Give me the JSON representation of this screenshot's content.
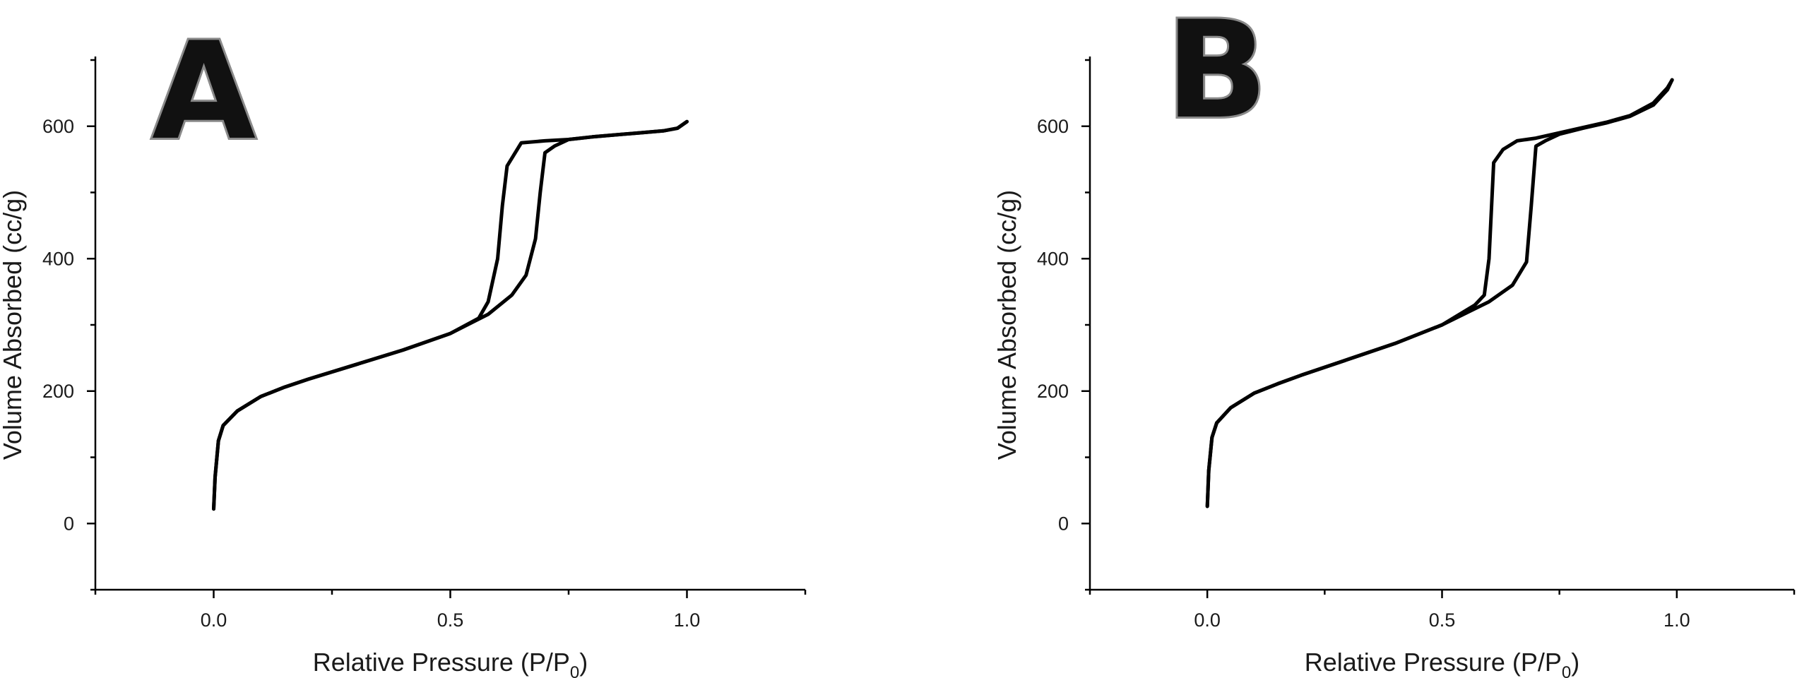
{
  "chart_data": [
    {
      "type": "line",
      "panel_label": "A",
      "xlabel": "Relative Pressure (P/P0)",
      "xlabel_parts": {
        "main": "Relative Pressure (P/P",
        "sub": "0",
        "close": ")"
      },
      "ylabel": "Volume Absorbed (cc/g)",
      "xlim": [
        -0.25,
        1.25
      ],
      "ylim": [
        -100,
        700
      ],
      "xticks": [
        0.0,
        0.5,
        1.0
      ],
      "xtick_labels": [
        "0.0",
        "0.5",
        "1.0"
      ],
      "yticks": [
        0,
        200,
        400,
        600
      ],
      "ytick_labels": [
        "0",
        "200",
        "400",
        "600"
      ],
      "grid": false,
      "series": [
        {
          "role": "adsorption",
          "x": [
            0.0,
            0.003,
            0.01,
            0.02,
            0.05,
            0.1,
            0.15,
            0.2,
            0.3,
            0.4,
            0.5,
            0.58,
            0.63,
            0.66,
            0.68,
            0.69,
            0.7,
            0.72,
            0.75,
            0.8,
            0.9,
            0.95,
            0.98,
            1.0
          ],
          "y": [
            22,
            70,
            125,
            148,
            170,
            192,
            206,
            218,
            240,
            262,
            287,
            316,
            345,
            375,
            430,
            500,
            560,
            570,
            580,
            584,
            590,
            593,
            597,
            607
          ]
        },
        {
          "role": "desorption",
          "x": [
            0.0,
            0.003,
            0.01,
            0.02,
            0.05,
            0.1,
            0.15,
            0.2,
            0.3,
            0.4,
            0.5,
            0.56,
            0.58,
            0.6,
            0.61,
            0.62,
            0.65,
            0.7,
            0.75,
            0.8,
            0.9,
            0.95,
            0.98,
            1.0
          ],
          "y": [
            22,
            70,
            125,
            148,
            170,
            192,
            206,
            218,
            240,
            262,
            287,
            310,
            335,
            400,
            480,
            540,
            575,
            578,
            580,
            584,
            590,
            593,
            597,
            607
          ]
        }
      ]
    },
    {
      "type": "line",
      "panel_label": "B",
      "xlabel": "Relative Pressure (P/P0)",
      "xlabel_parts": {
        "main": "Relative Pressure (P/P",
        "sub": "0",
        "close": ")"
      },
      "ylabel": "Volume Absorbed (cc/g)",
      "xlim": [
        -0.25,
        1.25
      ],
      "ylim": [
        -100,
        700
      ],
      "xticks": [
        0.0,
        0.5,
        1.0
      ],
      "xtick_labels": [
        "0.0",
        "0.5",
        "1.0"
      ],
      "yticks": [
        0,
        200,
        400,
        600
      ],
      "ytick_labels": [
        "0",
        "200",
        "400",
        "600"
      ],
      "grid": false,
      "series": [
        {
          "role": "adsorption",
          "x": [
            0.0,
            0.003,
            0.01,
            0.02,
            0.05,
            0.1,
            0.15,
            0.2,
            0.3,
            0.4,
            0.5,
            0.6,
            0.65,
            0.68,
            0.69,
            0.7,
            0.72,
            0.75,
            0.8,
            0.85,
            0.9,
            0.95,
            0.98,
            0.99
          ],
          "y": [
            26,
            80,
            130,
            152,
            175,
            197,
            211,
            224,
            248,
            272,
            300,
            335,
            360,
            395,
            480,
            570,
            578,
            588,
            597,
            605,
            615,
            632,
            655,
            670
          ]
        },
        {
          "role": "desorption",
          "x": [
            0.0,
            0.003,
            0.01,
            0.02,
            0.05,
            0.1,
            0.15,
            0.2,
            0.3,
            0.4,
            0.5,
            0.57,
            0.59,
            0.6,
            0.61,
            0.63,
            0.66,
            0.7,
            0.75,
            0.8,
            0.85,
            0.9,
            0.95,
            0.98,
            0.99
          ],
          "y": [
            26,
            80,
            130,
            152,
            175,
            197,
            211,
            224,
            248,
            272,
            300,
            330,
            345,
            400,
            545,
            565,
            578,
            582,
            590,
            598,
            606,
            616,
            635,
            658,
            670
          ]
        }
      ]
    }
  ]
}
